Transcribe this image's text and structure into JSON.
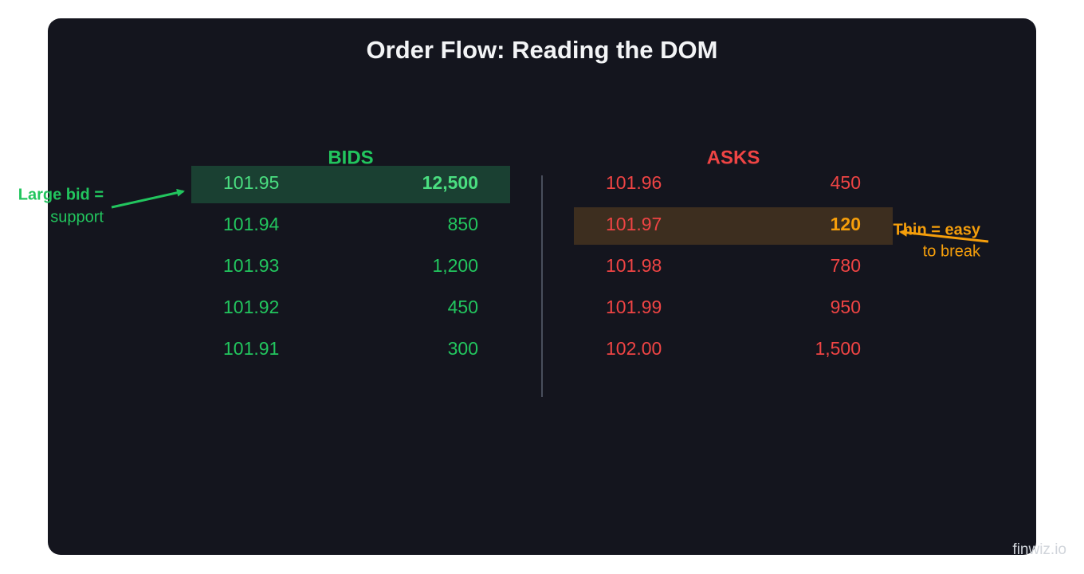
{
  "title": "Order Flow: Reading the DOM",
  "bids": {
    "label": "BIDS",
    "rows": [
      {
        "price": "101.95",
        "size": "12,500"
      },
      {
        "price": "101.94",
        "size": "850"
      },
      {
        "price": "101.93",
        "size": "1,200"
      },
      {
        "price": "101.92",
        "size": "450"
      },
      {
        "price": "101.91",
        "size": "300"
      }
    ]
  },
  "asks": {
    "label": "ASKS",
    "rows": [
      {
        "price": "101.96",
        "size": "450"
      },
      {
        "price": "101.97",
        "size": "120"
      },
      {
        "price": "101.98",
        "size": "780"
      },
      {
        "price": "101.99",
        "size": "950"
      },
      {
        "price": "102.00",
        "size": "1,500"
      }
    ]
  },
  "annotations": [
    {
      "lines": [
        "Large bid =",
        "support"
      ]
    },
    {
      "lines": [
        "Thin = easy",
        "to break"
      ]
    }
  ],
  "watermark": "finwiz.io"
}
